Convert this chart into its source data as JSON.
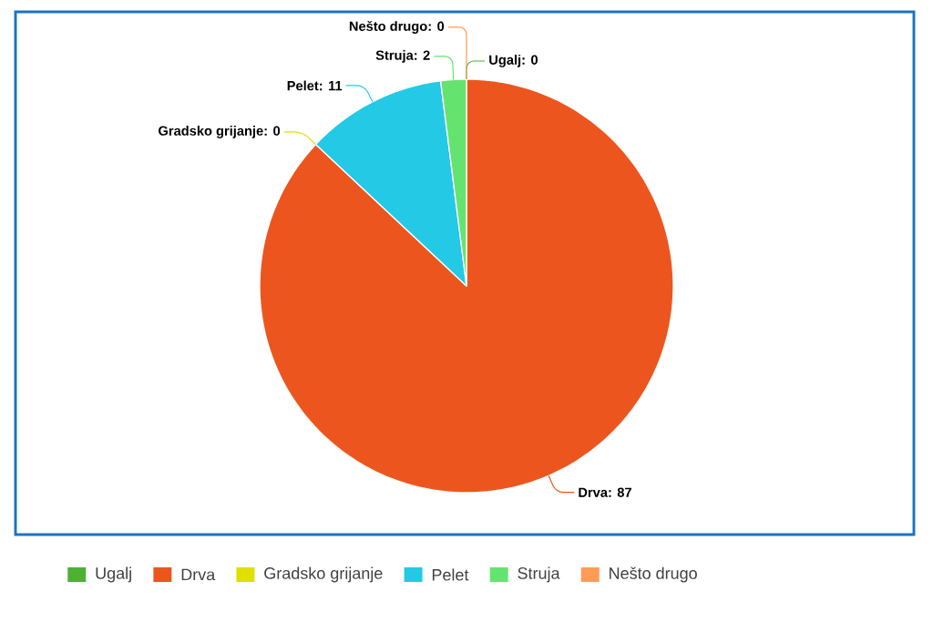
{
  "chart_data": {
    "type": "pie",
    "categories": [
      "Ugalj",
      "Drva",
      "Gradsko grijanje",
      "Pelet",
      "Struja",
      "Nešto drugo"
    ],
    "values": [
      0,
      87,
      0,
      11,
      2,
      0
    ],
    "colors": [
      "#4cb135",
      "#ec561e",
      "#dfdf00",
      "#24c9e5",
      "#64e46f",
      "#ff9a58"
    ],
    "value_labels": [
      "Ugalj: 0",
      "Drva: 87",
      "Gradsko grijanje: 0",
      "Pelet: 11",
      "Struja: 2",
      "Nešto drugo: 0"
    ],
    "legend": "bottom"
  }
}
